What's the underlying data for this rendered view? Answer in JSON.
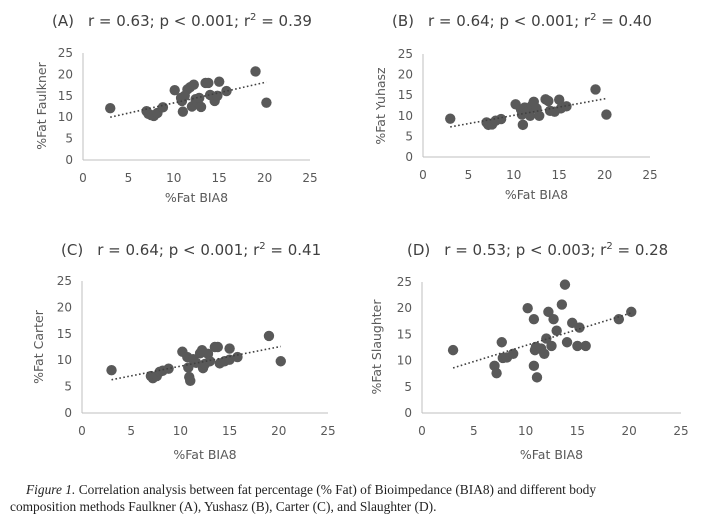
{
  "chart_data": [
    {
      "type": "scatter",
      "panel": "(A)",
      "stats": {
        "r": "r = 0.63",
        "p": "p < 0.001",
        "r2_prefix": "r",
        "r2_value": " = 0.39"
      },
      "xlabel": "%Fat BIA8",
      "ylabel": "%Fat Faulkner",
      "xlim": [
        0,
        25
      ],
      "ylim": [
        0,
        25
      ],
      "xticks": [
        0,
        5,
        10,
        15,
        20,
        25
      ],
      "yticks": [
        0,
        5,
        10,
        15,
        20,
        25
      ],
      "trendline": {
        "style": "dotted",
        "x": [
          3,
          20.2
        ],
        "y": [
          10.0,
          18.2
        ]
      },
      "points": [
        [
          3.0,
          12.1
        ],
        [
          7.0,
          11.4
        ],
        [
          7.2,
          10.8
        ],
        [
          7.5,
          10.5
        ],
        [
          7.8,
          10.3
        ],
        [
          8.2,
          11.0
        ],
        [
          8.8,
          12.3
        ],
        [
          10.1,
          16.3
        ],
        [
          10.8,
          14.5
        ],
        [
          10.9,
          13.8
        ],
        [
          11.0,
          11.3
        ],
        [
          11.2,
          15.0
        ],
        [
          11.5,
          16.5
        ],
        [
          11.8,
          17.0
        ],
        [
          12.0,
          12.5
        ],
        [
          12.2,
          17.6
        ],
        [
          12.4,
          14.2
        ],
        [
          12.6,
          13.5
        ],
        [
          12.8,
          14.5
        ],
        [
          13.0,
          12.4
        ],
        [
          13.5,
          18.0
        ],
        [
          13.8,
          18.0
        ],
        [
          14.0,
          15.2
        ],
        [
          14.5,
          13.8
        ],
        [
          14.8,
          15.0
        ],
        [
          15.0,
          18.3
        ],
        [
          15.8,
          16.1
        ],
        [
          19.0,
          20.7
        ],
        [
          20.2,
          13.4
        ]
      ]
    },
    {
      "type": "scatter",
      "panel": "(B)",
      "stats": {
        "r": "r = 0.64",
        "p": "p < 0.001",
        "r2_prefix": "r",
        "r2_value": " = 0.40"
      },
      "xlabel": "%Fat BIA8",
      "ylabel": "%Fat Yuhasz",
      "xlim": [
        0,
        25
      ],
      "ylim": [
        0,
        25
      ],
      "xticks": [
        0,
        5,
        10,
        15,
        20,
        25
      ],
      "yticks": [
        0,
        5,
        10,
        15,
        20,
        25
      ],
      "trendline": {
        "style": "dotted",
        "x": [
          3,
          20.2
        ],
        "y": [
          7.3,
          14.2
        ]
      },
      "points": [
        [
          3.0,
          9.3
        ],
        [
          7.0,
          8.4
        ],
        [
          7.2,
          7.8
        ],
        [
          7.6,
          7.9
        ],
        [
          8.0,
          8.8
        ],
        [
          8.6,
          9.2
        ],
        [
          10.2,
          12.8
        ],
        [
          10.8,
          11.5
        ],
        [
          10.9,
          10.3
        ],
        [
          11.0,
          7.8
        ],
        [
          11.2,
          12.0
        ],
        [
          11.5,
          11.0
        ],
        [
          11.8,
          10.0
        ],
        [
          12.0,
          12.5
        ],
        [
          12.2,
          13.4
        ],
        [
          12.5,
          11.8
        ],
        [
          12.8,
          10.0
        ],
        [
          13.5,
          14.0
        ],
        [
          13.8,
          13.6
        ],
        [
          14.0,
          11.2
        ],
        [
          14.5,
          11.0
        ],
        [
          15.0,
          13.9
        ],
        [
          15.2,
          11.8
        ],
        [
          15.8,
          12.3
        ],
        [
          19.0,
          16.4
        ],
        [
          20.2,
          10.3
        ]
      ]
    },
    {
      "type": "scatter",
      "panel": "(C)",
      "stats": {
        "r": "r = 0.64",
        "p": "p < 0.001",
        "r2_prefix": "r",
        "r2_value": " = 0.41"
      },
      "xlabel": "%Fat BIA8",
      "ylabel": "%Fat Carter",
      "xlim": [
        0,
        25
      ],
      "ylim": [
        0,
        25
      ],
      "xticks": [
        0,
        5,
        10,
        15,
        20,
        25
      ],
      "yticks": [
        0,
        5,
        10,
        15,
        20,
        25
      ],
      "trendline": {
        "style": "dotted",
        "x": [
          3,
          20.2
        ],
        "y": [
          6.3,
          12.6
        ]
      },
      "points": [
        [
          3.0,
          8.1
        ],
        [
          7.0,
          7.0
        ],
        [
          7.2,
          6.6
        ],
        [
          7.6,
          7.0
        ],
        [
          7.9,
          7.8
        ],
        [
          8.2,
          8.0
        ],
        [
          8.8,
          8.4
        ],
        [
          10.2,
          11.6
        ],
        [
          10.7,
          10.6
        ],
        [
          10.8,
          8.6
        ],
        [
          10.9,
          6.8
        ],
        [
          11.0,
          6.1
        ],
        [
          11.3,
          10.2
        ],
        [
          11.6,
          9.5
        ],
        [
          12.0,
          11.3
        ],
        [
          12.2,
          11.9
        ],
        [
          12.3,
          8.5
        ],
        [
          12.5,
          9.3
        ],
        [
          12.8,
          11.2
        ],
        [
          13.0,
          9.8
        ],
        [
          13.5,
          12.5
        ],
        [
          13.8,
          12.5
        ],
        [
          14.0,
          9.4
        ],
        [
          14.5,
          9.8
        ],
        [
          15.0,
          12.2
        ],
        [
          15.0,
          10.1
        ],
        [
          15.8,
          10.6
        ],
        [
          19.0,
          14.6
        ],
        [
          20.2,
          9.8
        ]
      ]
    },
    {
      "type": "scatter",
      "panel": "(D)",
      "stats": {
        "r": "r = 0.53",
        "p": "p < 0.003",
        "r2_prefix": "r",
        "r2_value": " = 0.28"
      },
      "xlabel": "%Fat BIA8",
      "ylabel": "%Fat Slaughter",
      "xlim": [
        0,
        25
      ],
      "ylim": [
        0,
        25
      ],
      "xticks": [
        0,
        5,
        10,
        15,
        20,
        25
      ],
      "yticks": [
        0,
        5,
        10,
        15,
        20,
        25
      ],
      "trendline": {
        "style": "dotted",
        "x": [
          3,
          20.2
        ],
        "y": [
          8.6,
          19.1
        ]
      },
      "points": [
        [
          3.0,
          12.0
        ],
        [
          7.0,
          9.0
        ],
        [
          7.2,
          7.6
        ],
        [
          7.7,
          13.5
        ],
        [
          7.8,
          10.5
        ],
        [
          8.2,
          10.6
        ],
        [
          8.8,
          11.3
        ],
        [
          10.2,
          20.0
        ],
        [
          10.8,
          17.9
        ],
        [
          10.8,
          9.0
        ],
        [
          10.9,
          12.0
        ],
        [
          11.0,
          12.6
        ],
        [
          11.1,
          6.8
        ],
        [
          11.5,
          12.3
        ],
        [
          11.8,
          11.3
        ],
        [
          12.0,
          14.2
        ],
        [
          12.2,
          19.3
        ],
        [
          12.5,
          12.8
        ],
        [
          12.7,
          17.9
        ],
        [
          13.0,
          15.7
        ],
        [
          13.5,
          20.7
        ],
        [
          13.8,
          24.5
        ],
        [
          14.0,
          13.5
        ],
        [
          14.5,
          17.2
        ],
        [
          15.0,
          12.8
        ],
        [
          15.2,
          16.3
        ],
        [
          15.8,
          12.8
        ],
        [
          19.0,
          17.9
        ],
        [
          20.2,
          19.3
        ]
      ]
    }
  ],
  "caption": {
    "figure_label": "Figure 1.",
    "line1": " Correlation analysis between fat percentage (% Fat) of Bioimpedance (BIA8) and different body",
    "line2": "composition methods Faulkner (A), Yushasz (B), Carter (C), and Slaughter (D)."
  },
  "colors": {
    "marker": "#595959",
    "axis": "#bfbfbf",
    "text": "#595959",
    "trend": "#404040"
  }
}
